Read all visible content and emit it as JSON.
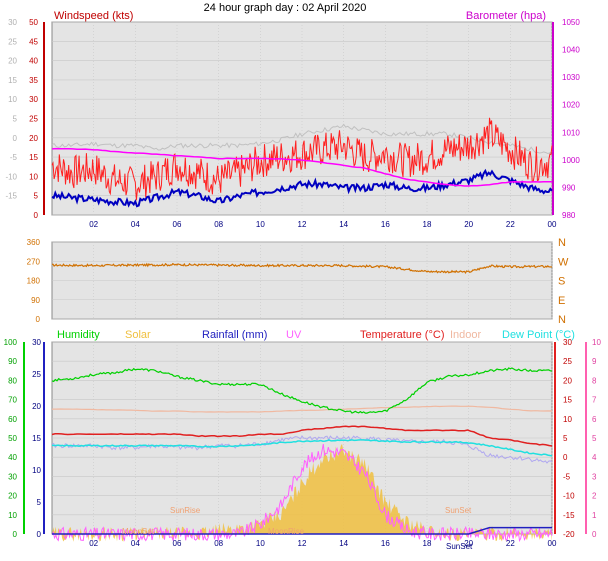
{
  "title": "24 hour graph day : 02 April 2020",
  "time_ticks": [
    "02",
    "04",
    "06",
    "08",
    "10",
    "12",
    "14",
    "16",
    "18",
    "20",
    "22",
    "00"
  ],
  "colors": {
    "wind": "#e00000",
    "gust": "#ff2020",
    "avg_wind": "#0000c0",
    "baro": "#ff00ff",
    "gust_dir": "#c0c0c0",
    "wind_dir": "#d07000",
    "humidity": "#00d000",
    "solar": "#f0c040",
    "rainfall": "#2020c0",
    "uv": "#ff60ff",
    "temperature": "#e02020",
    "indoor": "#f0b8a0",
    "dewpoint": "#20e0e0",
    "feels": "#b0a8f0"
  },
  "chart_data": [
    {
      "type": "line",
      "title": "",
      "left_axis": {
        "label": "Windspeed (kts)",
        "range": [
          0,
          50
        ],
        "ticks": [
          "0",
          "5",
          "10",
          "15",
          "20",
          "25",
          "30",
          "35",
          "40",
          "45",
          "50"
        ]
      },
      "outer_axis": {
        "range": [
          -15,
          30
        ],
        "ticks": [
          "-15",
          "-10",
          "-5",
          "0",
          "5",
          "10",
          "15",
          "20",
          "25",
          "30"
        ]
      },
      "right_axis": {
        "label": "Barometer (hpa)",
        "range": [
          980,
          1050
        ],
        "ticks": [
          "980",
          "990",
          "1000",
          "1010",
          "1020",
          "1030",
          "1040",
          "1050"
        ]
      },
      "x_hours": [
        0,
        1,
        2,
        3,
        4,
        5,
        6,
        7,
        8,
        9,
        10,
        11,
        12,
        13,
        14,
        15,
        16,
        17,
        18,
        19,
        20,
        21,
        22,
        23,
        24
      ],
      "series": [
        {
          "key": "gust",
          "axis": "left",
          "values": [
            13,
            11,
            12,
            9,
            8,
            10,
            13,
            11,
            9,
            11,
            14,
            15,
            16,
            17,
            18,
            15,
            16,
            14,
            15,
            17,
            18,
            21,
            17,
            13,
            14
          ]
        },
        {
          "key": "avg_wind",
          "axis": "left",
          "values": [
            5,
            4.5,
            4,
            3.5,
            3,
            4.5,
            6,
            5,
            3.5,
            5,
            6,
            7,
            8,
            8,
            7,
            7,
            8,
            7,
            7,
            8,
            9,
            11,
            9,
            7,
            6
          ]
        },
        {
          "key": "baro",
          "axis": "right",
          "values": [
            1004,
            1004,
            1003.7,
            1003,
            1002.5,
            1002,
            1001.5,
            1001,
            1000.5,
            1000.5,
            1000.5,
            1000.3,
            1000,
            999,
            998,
            997,
            995,
            993,
            992,
            991,
            990.5,
            991,
            992,
            992,
            992
          ]
        },
        {
          "key": "gust_dir",
          "axis": "outer",
          "values": [
            3,
            3,
            3.5,
            3,
            3,
            2,
            3,
            3,
            3,
            3,
            3.5,
            4.5,
            6,
            7,
            8,
            7,
            6,
            6,
            6,
            6,
            5,
            4,
            3,
            2,
            1
          ]
        }
      ]
    },
    {
      "type": "line",
      "title": "",
      "left_axis": {
        "range": [
          0,
          360
        ],
        "ticks": [
          "0",
          "90",
          "180",
          "270",
          "360"
        ]
      },
      "right_axis": {
        "ticks": [
          "N",
          "E",
          "S",
          "W",
          "N"
        ]
      },
      "x_hours": [
        0,
        2,
        4,
        6,
        8,
        10,
        12,
        14,
        16,
        18,
        20,
        21,
        22,
        24
      ],
      "series": [
        {
          "key": "wind_dir",
          "axis": "left",
          "values": [
            252,
            250,
            252,
            254,
            252,
            250,
            250,
            250,
            244,
            222,
            220,
            248,
            244,
            246
          ]
        }
      ]
    },
    {
      "type": "area",
      "title": "",
      "legend": [
        "Humidity",
        "Solar",
        "Rainfall (mm)",
        "UV",
        "Temperature (°C)",
        "Indoor",
        "Dew Point (°C)"
      ],
      "humidity_axis": {
        "range": [
          0,
          100
        ],
        "ticks": [
          "0",
          "10",
          "20",
          "30",
          "40",
          "50",
          "60",
          "70",
          "80",
          "90",
          "100"
        ]
      },
      "rain_axis": {
        "range": [
          0,
          30
        ],
        "ticks": [
          "0",
          "5",
          "10",
          "15",
          "20",
          "25",
          "30"
        ]
      },
      "temp_axis": {
        "range": [
          -20,
          30
        ],
        "ticks": [
          "-20",
          "-15",
          "-10",
          "-5",
          "0",
          "5",
          "10",
          "15",
          "20",
          "25",
          "30"
        ]
      },
      "uv_axis": {
        "range": [
          0,
          10
        ],
        "ticks": [
          "0",
          "1",
          "2",
          "3",
          "4",
          "5",
          "6",
          "7",
          "8",
          "9",
          "10"
        ]
      },
      "annotations": [
        "SunRise",
        "SunSet",
        "MoonSet",
        "MoonRise",
        "SunSet"
      ],
      "x_hours": [
        0,
        1,
        2,
        3,
        4,
        5,
        6,
        7,
        8,
        9,
        10,
        11,
        12,
        13,
        14,
        15,
        16,
        17,
        18,
        19,
        20,
        21,
        22,
        23,
        24
      ],
      "series": [
        {
          "key": "humidity",
          "axis": "humidity",
          "values": [
            80,
            81,
            83,
            84,
            86,
            85,
            82,
            80,
            78,
            78,
            78,
            73,
            69,
            66,
            64,
            63,
            64,
            70,
            79,
            82,
            83,
            85,
            86,
            85,
            85
          ]
        },
        {
          "key": "temperature",
          "axis": "temp",
          "values": [
            6,
            6,
            6,
            6,
            6,
            6,
            6,
            5.5,
            5.5,
            5.5,
            6,
            6,
            7,
            7.5,
            8,
            8,
            7.5,
            7,
            7,
            7,
            7,
            5,
            4.5,
            3.5,
            3
          ]
        },
        {
          "key": "dewpoint",
          "axis": "temp",
          "values": [
            3,
            3,
            3,
            3,
            3,
            3,
            3,
            2.8,
            2.8,
            3,
            3.3,
            3.8,
            4.2,
            4.3,
            4.4,
            4.4,
            4.2,
            4,
            4,
            4,
            3.8,
            3,
            2,
            1,
            0.5
          ]
        },
        {
          "key": "indoor",
          "axis": "temp",
          "values": [
            12.5,
            12.5,
            12.4,
            12.3,
            12.2,
            12,
            12,
            11.8,
            11.8,
            11.8,
            11.8,
            12,
            12.2,
            12.3,
            12.5,
            12.7,
            12.9,
            13,
            13.2,
            13.3,
            13.3,
            13,
            12.5,
            12.1,
            12
          ]
        },
        {
          "key": "feels",
          "axis": "temp",
          "values": [
            3,
            3,
            3,
            2.5,
            2.5,
            3,
            2.5,
            2.5,
            3,
            3,
            3.5,
            4.5,
            5,
            5,
            5,
            5,
            4.5,
            4,
            4,
            4,
            3,
            0.5,
            0,
            -0.5,
            -1.5
          ]
        },
        {
          "key": "solar",
          "axis": "rain",
          "values": [
            0,
            0,
            0,
            0,
            0,
            0,
            0,
            0,
            0.5,
            1,
            1.5,
            3,
            8,
            12,
            13,
            11,
            5,
            2,
            0.5,
            0,
            0,
            0,
            0,
            0,
            0
          ]
        },
        {
          "key": "uv",
          "axis": "uv",
          "values": [
            0,
            0,
            0,
            0,
            0,
            0,
            0,
            0,
            0,
            0,
            0.5,
            1.5,
            3.5,
            4.4,
            4.2,
            3.2,
            1,
            0.2,
            0,
            0,
            0,
            0,
            0,
            0,
            0
          ]
        },
        {
          "key": "rainfall",
          "axis": "rain",
          "values": [
            0,
            0,
            0,
            0,
            0,
            0,
            0,
            0,
            0,
            0,
            0,
            0,
            0,
            0,
            0,
            0,
            0,
            0,
            0,
            0,
            0,
            1,
            1,
            1,
            1
          ]
        }
      ]
    }
  ]
}
